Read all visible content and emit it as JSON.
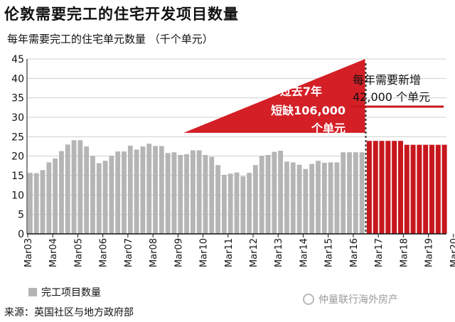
{
  "header": {
    "title": "伦敦需要完工的住宅开发项目数量",
    "subtitle": "每年需要完工的住宅单元数量 （千个单元）"
  },
  "legend": {
    "label": "完工项目数量"
  },
  "source": "来源：英国社区与地方政府部",
  "watermark": "仲量联行海外房产",
  "colors": {
    "actual_bar": "#b5b5b5",
    "required_bar": "#c8161d",
    "triangle": "#d41f26",
    "grid": "#cfcfcf"
  },
  "annotations": {
    "shortfall": [
      "过去7年",
      "短缺106,000",
      "个单元"
    ],
    "required": [
      "每年需要新增",
      "42,000  个单元"
    ]
  },
  "chart_data": {
    "type": "bar",
    "ylim": [
      0,
      45
    ],
    "yticks": [
      0,
      5,
      10,
      15,
      20,
      25,
      30,
      35,
      40,
      45
    ],
    "xtick_labels": [
      "Mar03",
      "Mar04",
      "Mar05",
      "Mar06",
      "Mar07",
      "Mar08",
      "Mar09",
      "Mar10",
      "Mar11",
      "Mar12",
      "Mar13",
      "Mar14",
      "Mar15",
      "Mar16",
      "Mar17",
      "Mar18",
      "Mar19",
      "Mar20"
    ],
    "series": [
      {
        "name": "完工项目数量",
        "values": [
          15.7,
          15.6,
          16.4,
          18.4,
          19.4,
          21.3,
          23.0,
          24.1,
          24.1,
          22.5,
          20.1,
          18.2,
          18.8,
          20.1,
          21.2,
          21.2,
          22.7,
          21.7,
          22.5,
          23.2,
          22.6,
          22.6,
          20.8,
          21.0,
          20.3,
          20.5,
          21.5,
          21.5,
          20.3,
          19.8,
          17.7,
          15.2,
          15.5,
          15.8,
          14.8,
          15.7,
          17.7,
          20.1,
          20.3,
          21.1,
          21.4,
          18.6,
          18.4,
          17.8,
          16.7,
          18.0,
          18.8,
          18.3,
          18.4,
          18.4,
          21.0,
          21.0,
          21.0,
          21.0
        ]
      },
      {
        "name": "",
        "values": [
          24.0,
          24.0,
          24.0,
          24.0,
          24.0,
          24.0,
          23.0,
          23.0,
          23.0,
          23.0,
          23.0,
          23.0,
          23.0
        ]
      }
    ]
  }
}
